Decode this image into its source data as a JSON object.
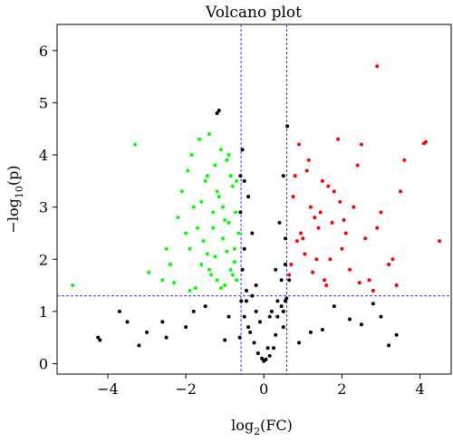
{
  "chart_data": {
    "type": "scatter",
    "title": "Volcano plot",
    "xlabel": {
      "prefix": "log",
      "sub": "2",
      "suffix": "(FC)"
    },
    "ylabel": {
      "prefix": "−log",
      "sub": "10",
      "suffix": "(p)"
    },
    "xlim": [
      -5.3,
      4.8
    ],
    "ylim": [
      -0.2,
      6.5
    ],
    "xticks": [
      -4,
      -2,
      0,
      2,
      4
    ],
    "xtick_labels": [
      "−4",
      "−2",
      "0",
      "2",
      "4"
    ],
    "yticks": [
      0,
      1,
      2,
      3,
      4,
      5,
      6
    ],
    "ytick_labels": [
      "0",
      "1",
      "2",
      "3",
      "4",
      "5",
      "6"
    ],
    "thresholds": {
      "fc_low": -0.585,
      "fc_high": 0.585,
      "p": 1.3
    },
    "colors": {
      "down": "#00ff00",
      "up": "#ff0000",
      "ns": "#000000",
      "threshold": "#3030ff"
    },
    "grid": false,
    "series": [
      {
        "group": "down",
        "x": [
          -4.9,
          -3.3,
          -2.95,
          -2.1,
          -2.0,
          -1.95,
          -1.9,
          -1.85,
          -1.8,
          -1.7,
          -1.65,
          -1.6,
          -1.5,
          -1.45,
          -1.4,
          -1.35,
          -1.3,
          -1.25,
          -1.2,
          -1.15,
          -1.1,
          -1.05,
          -1.0,
          -0.95,
          -0.9,
          -0.85,
          -0.8,
          -0.75,
          -0.7,
          -0.65,
          -2.4,
          -2.2,
          -2.3,
          -1.75,
          -1.55,
          -1.45,
          -1.25,
          -1.05,
          -0.9,
          -0.8,
          -0.72,
          -2.6,
          -2.5,
          -1.9,
          -1.6,
          -1.3,
          -1.1,
          -0.95,
          -0.7,
          -1.4,
          -1.2,
          -1.0,
          -0.85,
          -0.75
        ],
        "y": [
          1.5,
          4.2,
          1.75,
          3.3,
          2.5,
          3.7,
          2.2,
          4.0,
          3.0,
          2.6,
          4.3,
          1.9,
          3.5,
          2.1,
          4.4,
          1.7,
          2.9,
          3.8,
          1.6,
          3.2,
          4.1,
          2.4,
          1.5,
          3.9,
          2.7,
          1.8,
          3.4,
          2.2,
          1.6,
          2.5,
          1.9,
          2.8,
          1.55,
          1.45,
          2.35,
          3.6,
          2.05,
          3.0,
          4.0,
          1.7,
          2.9,
          1.6,
          2.2,
          1.4,
          3.1,
          2.6,
          1.45,
          2.15,
          3.5,
          1.8,
          3.3,
          2.75,
          3.6,
          1.95
        ]
      },
      {
        "group": "up",
        "x": [
          2.9,
          4.1,
          4.15,
          3.6,
          4.5,
          3.5,
          3.3,
          2.5,
          2.3,
          2.1,
          1.9,
          1.7,
          1.5,
          1.3,
          1.1,
          0.9,
          0.7,
          2.7,
          2.4,
          2.0,
          1.8,
          1.6,
          1.4,
          1.2,
          1.0,
          0.8,
          0.65,
          3.0,
          2.8,
          2.6,
          2.2,
          1.95,
          1.75,
          1.55,
          1.35,
          1.15,
          0.95,
          0.75,
          3.2,
          2.9,
          2.45,
          2.05,
          1.65,
          1.25,
          0.85,
          3.4,
          1.45,
          1.05
        ],
        "y": [
          5.7,
          4.22,
          4.25,
          3.9,
          2.35,
          3.3,
          2.0,
          4.2,
          3.0,
          2.5,
          4.3,
          2.0,
          3.5,
          2.8,
          3.7,
          4.2,
          1.9,
          1.6,
          3.8,
          2.2,
          3.3,
          1.5,
          2.6,
          3.0,
          2.4,
          3.6,
          1.7,
          2.9,
          1.4,
          2.4,
          1.8,
          3.1,
          2.7,
          1.6,
          2.0,
          3.9,
          2.5,
          3.2,
          1.9,
          2.6,
          1.55,
          2.75,
          3.4,
          1.75,
          2.35,
          1.5,
          2.9,
          2.1
        ]
      },
      {
        "group": "ns",
        "x": [
          -4.2,
          -4.25,
          -3.7,
          -3.5,
          -2.5,
          -2.6,
          -3.2,
          -1.2,
          -1.15,
          -0.55,
          -0.4,
          -0.3,
          -0.2,
          -0.1,
          0.0,
          0.1,
          0.2,
          0.3,
          0.4,
          0.5,
          -0.5,
          -0.45,
          -0.35,
          -0.25,
          -0.15,
          -0.05,
          0.05,
          0.15,
          0.25,
          0.35,
          0.45,
          0.55,
          -0.6,
          -0.6,
          -0.55,
          -0.5,
          0.6,
          0.5,
          0.55,
          0.65,
          -0.62,
          0.55,
          3.4,
          3.0,
          2.5,
          1.8,
          1.2,
          0.9,
          -0.9,
          -1.5,
          -2.0,
          -1.8,
          -1.0,
          1.5,
          2.2,
          2.8,
          -3.0,
          3.2,
          -0.4,
          0.3,
          -0.2,
          0.15,
          -0.3,
          0.35,
          -0.45,
          0.45,
          -0.5,
          0.5,
          -0.58,
          0.58
        ],
        "y": [
          0.45,
          0.5,
          1.0,
          0.8,
          0.5,
          0.8,
          0.35,
          4.8,
          4.85,
          4.1,
          3.2,
          2.5,
          1.5,
          0.8,
          0.05,
          0.3,
          1.0,
          1.8,
          2.7,
          3.6,
          2.2,
          1.4,
          0.6,
          0.4,
          0.2,
          0.1,
          0.08,
          0.15,
          0.3,
          0.9,
          1.6,
          2.4,
          3.6,
          2.9,
          1.8,
          3.5,
          4.55,
          0.7,
          1.2,
          1.6,
          0.5,
          1.9,
          0.55,
          0.9,
          0.75,
          1.1,
          0.6,
          0.4,
          0.9,
          1.1,
          0.7,
          1.0,
          0.45,
          0.65,
          0.85,
          1.15,
          0.6,
          0.35,
          0.7,
          0.55,
          1.0,
          0.9,
          1.3,
          1.2,
          1.2,
          1.1,
          0.9,
          1.0,
          1.2,
          1.25
        ]
      }
    ]
  }
}
